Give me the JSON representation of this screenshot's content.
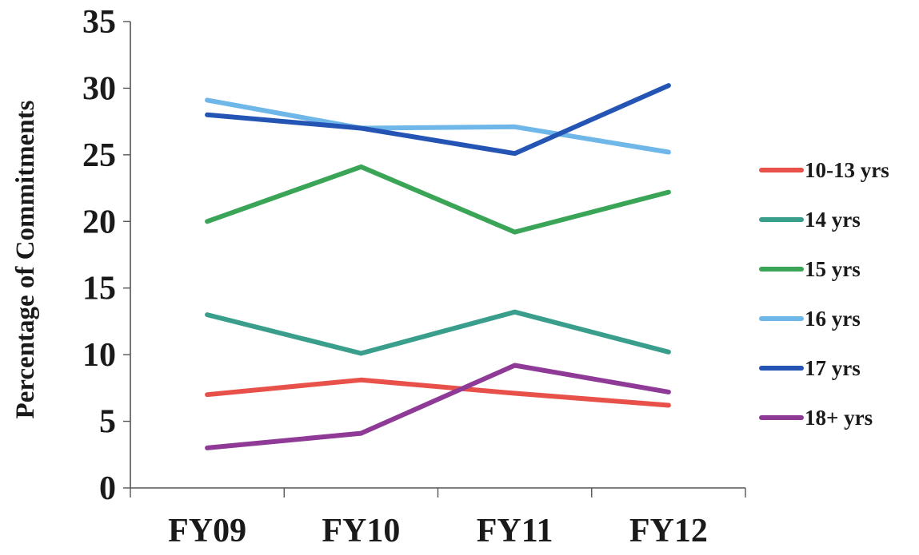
{
  "chart_data": {
    "type": "line",
    "title": "",
    "xlabel": "",
    "ylabel": "Percentage of Commitments",
    "categories": [
      "FY09",
      "FY10",
      "FY11",
      "FY12"
    ],
    "ylim": [
      0,
      35
    ],
    "yticks": [
      0,
      5,
      10,
      15,
      20,
      25,
      30,
      35
    ],
    "grid": false,
    "legend_position": "right",
    "series": [
      {
        "name": "10-13 yrs",
        "color": "#e8514a",
        "values": [
          7.0,
          8.1,
          7.1,
          6.2
        ]
      },
      {
        "name": "14 yrs",
        "color": "#3a9e8c",
        "values": [
          13.0,
          10.1,
          13.2,
          10.2
        ]
      },
      {
        "name": "15 yrs",
        "color": "#3aa556",
        "values": [
          20.0,
          24.1,
          19.2,
          22.2
        ]
      },
      {
        "name": "16 yrs",
        "color": "#6fb7e8",
        "values": [
          29.1,
          27.0,
          27.1,
          25.2
        ]
      },
      {
        "name": "17 yrs",
        "color": "#2455b5",
        "values": [
          28.0,
          27.0,
          25.1,
          30.2
        ]
      },
      {
        "name": "18+ yrs",
        "color": "#8e3a96",
        "values": [
          3.0,
          4.1,
          9.2,
          7.2
        ]
      }
    ]
  }
}
